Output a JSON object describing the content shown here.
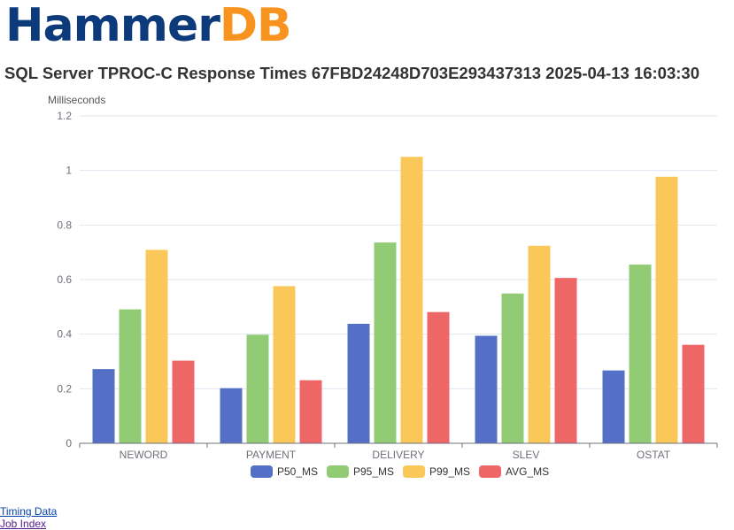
{
  "logo": {
    "part1": "Hammer",
    "part2": "DB"
  },
  "title": "SQL Server TPROC-C Response Times 67FBD24248D703E293437313 2025-04-13 16:03:30",
  "links": {
    "timing": "Timing Data",
    "job_index": "Job Index"
  },
  "chart_data": {
    "type": "bar",
    "title": "SQL Server TPROC-C Response Times 67FBD24248D703E293437313 2025-04-13 16:03:30",
    "xlabel": "",
    "ylabel": "Milliseconds",
    "categories": [
      "NEWORD",
      "PAYMENT",
      "DELIVERY",
      "SLEV",
      "OSTAT"
    ],
    "ylim": [
      0,
      1.2
    ],
    "yticks": [
      "0",
      "0.2",
      "0.4",
      "0.6",
      "0.8",
      "1",
      "1.2"
    ],
    "grid": true,
    "legend": "bottom",
    "series": [
      {
        "name": "P50_MS",
        "color": "#5470c6",
        "values": [
          0.272,
          0.202,
          0.438,
          0.394,
          0.267
        ]
      },
      {
        "name": "P95_MS",
        "color": "#91cc75",
        "values": [
          0.491,
          0.398,
          0.736,
          0.549,
          0.655
        ]
      },
      {
        "name": "P99_MS",
        "color": "#fac858",
        "values": [
          0.709,
          0.576,
          1.05,
          0.724,
          0.977
        ]
      },
      {
        "name": "AVG_MS",
        "color": "#ee6666",
        "values": [
          0.303,
          0.231,
          0.481,
          0.606,
          0.361
        ]
      }
    ]
  }
}
